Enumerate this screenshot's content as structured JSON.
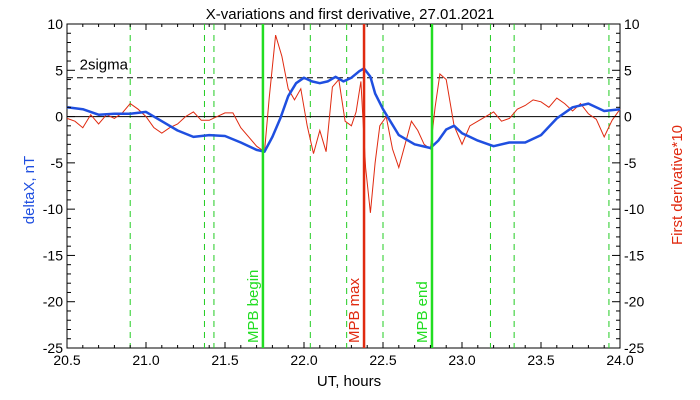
{
  "chart_data": {
    "type": "line",
    "title": "X-variations and first derivative, 27.01.2021",
    "xlabel": "UT, hours",
    "ylabel_left": "deltaX, nT",
    "ylabel_right": "First derivative*10",
    "xlim": [
      20.5,
      24.0
    ],
    "ylim": [
      -25,
      10
    ],
    "xticks": [
      20.5,
      21.0,
      21.5,
      22.0,
      22.5,
      23.0,
      23.5,
      24.0
    ],
    "xtick_labels": [
      "20.5",
      "21.0",
      "21.5",
      "22.0",
      "22.5",
      "23.0",
      "23.5",
      "24.0"
    ],
    "yticks": [
      10,
      5,
      0,
      -5,
      -10,
      -15,
      -20,
      -25
    ],
    "ytick_labels": [
      "10",
      "5",
      "0",
      "-5",
      "-10",
      "-15",
      "-20",
      "-25"
    ],
    "grid": false,
    "colors": {
      "deltaX": "#1f4fe0",
      "derivative": "#e02a10",
      "mpb_begin": "#22dd22",
      "mpb_end": "#22dd22",
      "mpb_max": "#e02a10",
      "dashed_green": "#22cc22",
      "zero_line": "#000000",
      "sigma_line": "#000000"
    },
    "sigma": {
      "label": "2sigma",
      "value": 4.2
    },
    "zero_line": 0,
    "markers": [
      {
        "label": "MPB begin",
        "x": 21.74,
        "color": "#22dd22"
      },
      {
        "label": "MPB max",
        "x": 22.38,
        "color": "#e02a10"
      },
      {
        "label": "MPB end",
        "x": 22.81,
        "color": "#22dd22"
      }
    ],
    "dashed_vlines": [
      20.9,
      21.37,
      21.43,
      22.04,
      22.27,
      22.5,
      23.18,
      23.33,
      23.93
    ],
    "series": [
      {
        "axis": "left",
        "x": [
          20.5,
          20.6,
          20.7,
          20.8,
          20.9,
          21.0,
          21.1,
          21.2,
          21.3,
          21.4,
          21.5,
          21.6,
          21.7,
          21.75,
          21.8,
          21.85,
          21.9,
          21.95,
          22.0,
          22.05,
          22.1,
          22.15,
          22.2,
          22.25,
          22.3,
          22.35,
          22.38,
          22.42,
          22.45,
          22.5,
          22.6,
          22.7,
          22.8,
          22.85,
          22.9,
          22.95,
          23.0,
          23.05,
          23.1,
          23.2,
          23.3,
          23.4,
          23.5,
          23.6,
          23.7,
          23.8,
          23.9,
          24.0
        ],
        "values": [
          1.0,
          0.8,
          0.2,
          0.3,
          0.3,
          0.5,
          -0.5,
          -1.5,
          -2.2,
          -2.0,
          -2.1,
          -2.8,
          -3.6,
          -3.8,
          -2.2,
          -0.2,
          2.2,
          3.6,
          4.2,
          3.8,
          3.6,
          3.8,
          4.3,
          3.8,
          4.2,
          4.9,
          5.2,
          4.3,
          2.5,
          0.8,
          -2.0,
          -3.0,
          -3.4,
          -2.6,
          -1.4,
          -1.0,
          -1.8,
          -2.2,
          -2.6,
          -3.2,
          -2.8,
          -2.8,
          -2.0,
          -0.2,
          1.0,
          1.4,
          0.6,
          0.8
        ]
      },
      {
        "axis": "right",
        "x": [
          20.5,
          20.55,
          20.6,
          20.65,
          20.7,
          20.75,
          20.8,
          20.85,
          20.9,
          20.95,
          21.0,
          21.05,
          21.1,
          21.15,
          21.2,
          21.25,
          21.3,
          21.35,
          21.4,
          21.45,
          21.5,
          21.55,
          21.6,
          21.65,
          21.7,
          21.75,
          21.78,
          21.82,
          21.86,
          21.9,
          21.94,
          21.98,
          22.02,
          22.06,
          22.1,
          22.14,
          22.18,
          22.22,
          22.26,
          22.3,
          22.33,
          22.36,
          22.39,
          22.42,
          22.45,
          22.48,
          22.52,
          22.56,
          22.6,
          22.64,
          22.68,
          22.72,
          22.76,
          22.8,
          22.83,
          22.86,
          22.9,
          22.95,
          23.0,
          23.05,
          23.1,
          23.15,
          23.2,
          23.25,
          23.3,
          23.35,
          23.4,
          23.45,
          23.5,
          23.55,
          23.6,
          23.65,
          23.7,
          23.75,
          23.8,
          23.85,
          23.9,
          23.95,
          24.0
        ],
        "values": [
          -0.2,
          -0.5,
          -1.2,
          0.2,
          -0.8,
          0.2,
          -0.2,
          0.4,
          1.4,
          0.8,
          0.0,
          -1.2,
          -1.8,
          -1.2,
          -0.8,
          0.0,
          0.5,
          -0.4,
          -0.4,
          0.0,
          0.4,
          0.4,
          -1.2,
          -2.2,
          -3.2,
          -3.8,
          2.0,
          8.8,
          6.5,
          3.0,
          1.8,
          3.0,
          -1.0,
          -4.0,
          -1.5,
          -3.8,
          3.2,
          4.0,
          -0.5,
          -1.0,
          0.5,
          3.8,
          -5.5,
          -10.4,
          -5.0,
          -1.0,
          0.0,
          -3.5,
          -5.5,
          -3.0,
          -0.5,
          -1.5,
          -3.0,
          -3.5,
          1.0,
          4.6,
          4.0,
          -1.0,
          -3.0,
          -1.0,
          -0.5,
          0.0,
          0.5,
          -0.5,
          -0.2,
          0.8,
          1.2,
          1.8,
          1.6,
          1.0,
          2.0,
          1.4,
          0.6,
          1.4,
          0.3,
          -0.3,
          -2.2,
          -0.4,
          0.8
        ]
      }
    ]
  }
}
